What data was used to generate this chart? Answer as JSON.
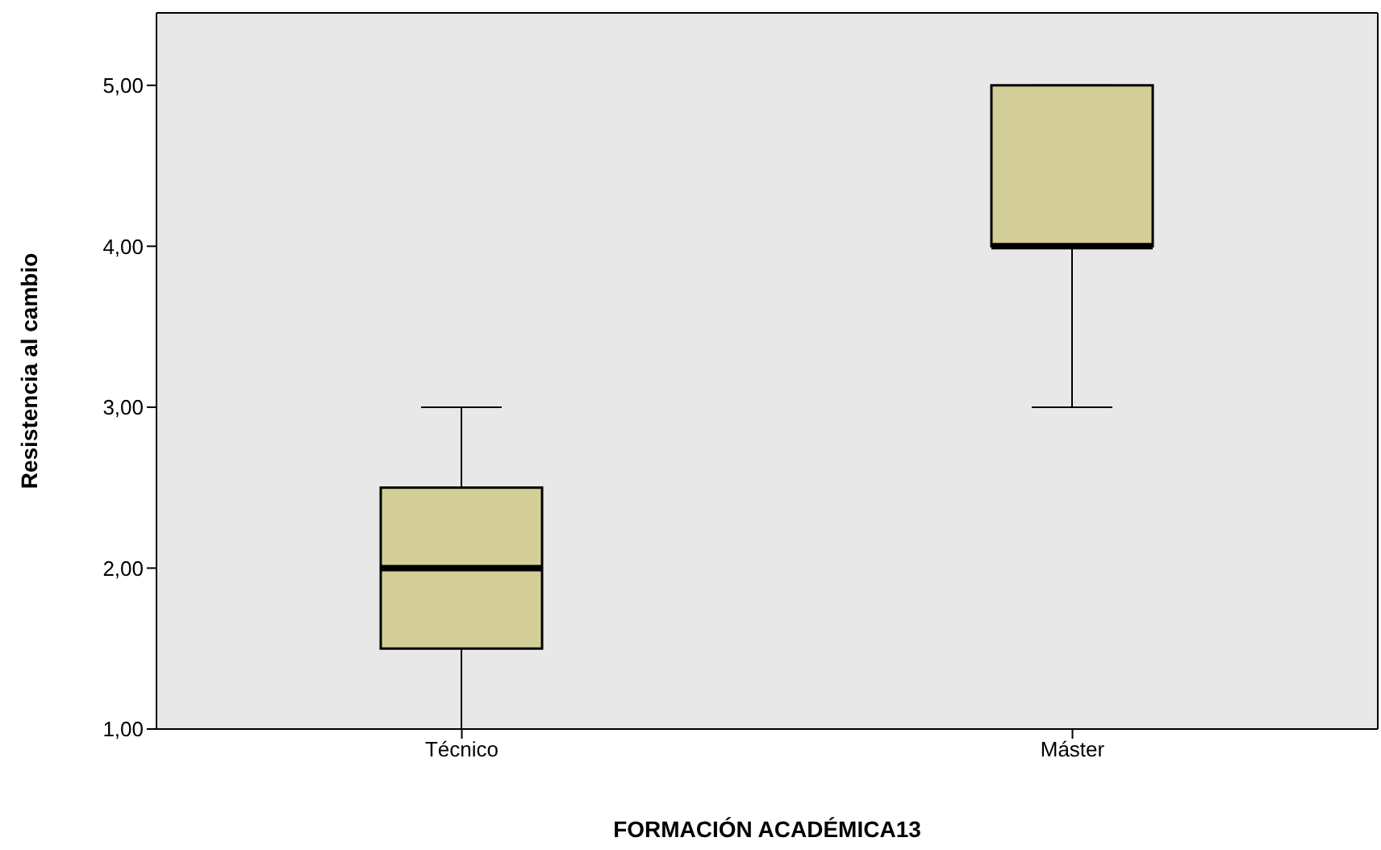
{
  "chart_data": {
    "type": "box",
    "categories": [
      "Técnico",
      "Máster"
    ],
    "boxes": [
      {
        "low": 1,
        "q1": 1.5,
        "median": 2,
        "q3": 2.5,
        "high": 3
      },
      {
        "low": 3,
        "q1": 4,
        "median": 4,
        "q3": 5,
        "high": 5
      }
    ],
    "color": "#d3ce97",
    "xlabel": "FORMACIÓN ACADÉMICA13",
    "ylabel": "Resistencia al cambio",
    "ylim": [
      1,
      5.45
    ],
    "yticks": [
      {
        "value": 1,
        "label": "1,00"
      },
      {
        "value": 2,
        "label": "2,00"
      },
      {
        "value": 3,
        "label": "3,00"
      },
      {
        "value": 4,
        "label": "4,00"
      },
      {
        "value": 5,
        "label": "5,00"
      }
    ]
  }
}
